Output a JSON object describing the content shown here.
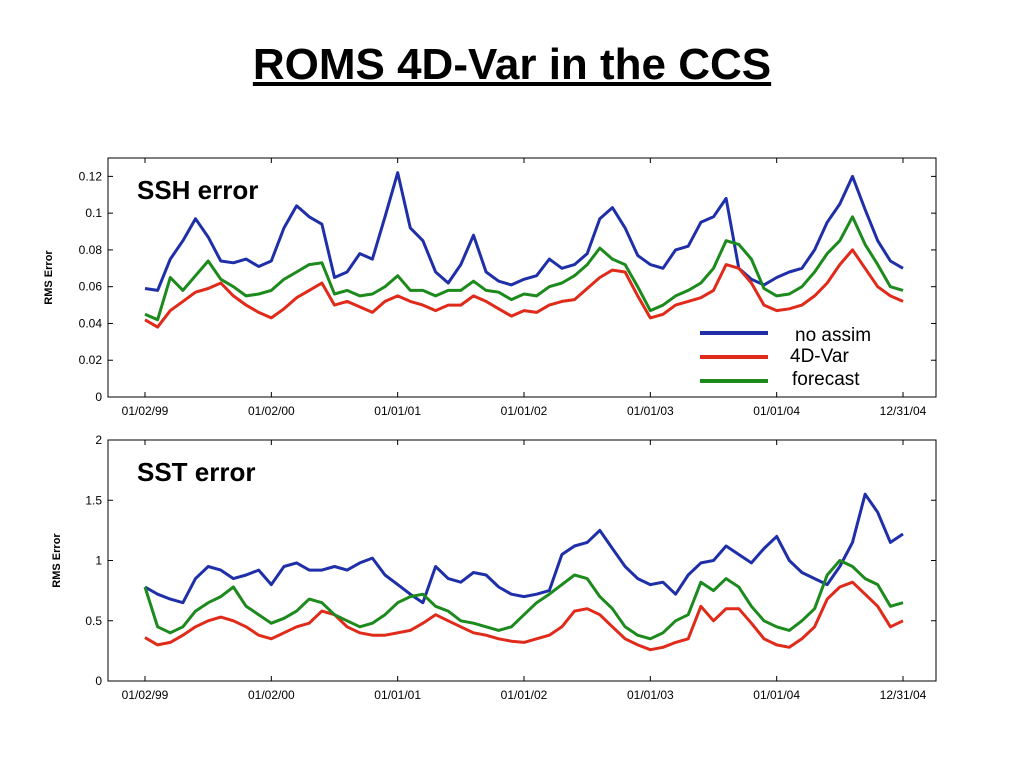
{
  "slide": {
    "title": "ROMS 4D-Var in the CCS"
  },
  "chart_data": [
    {
      "type": "line",
      "title": "SSH error",
      "xlabel": "",
      "ylabel": "RMS Error",
      "x_ticks": [
        "01/02/99",
        "01/02/00",
        "01/01/01",
        "01/01/02",
        "01/01/03",
        "01/01/04",
        "12/31/04"
      ],
      "y_ticks": [
        "0",
        "0.02",
        "0.04",
        "0.06",
        "0.08",
        "0.1",
        "0.12"
      ],
      "xlim": [
        0,
        6
      ],
      "ylim": [
        0,
        0.13
      ],
      "grid": false,
      "legend": {
        "position": "right",
        "entries": [
          "no assim",
          "4D-Var",
          "forecast"
        ]
      },
      "series": [
        {
          "name": "no assim",
          "color": "#1f2fa8",
          "x": [
            0,
            0.1,
            0.2,
            0.3,
            0.4,
            0.5,
            0.6,
            0.7,
            0.8,
            0.9,
            1,
            1.1,
            1.2,
            1.3,
            1.4,
            1.5,
            1.6,
            1.7,
            1.8,
            1.9,
            2,
            2.1,
            2.2,
            2.3,
            2.4,
            2.5,
            2.6,
            2.7,
            2.8,
            2.9,
            3,
            3.1,
            3.2,
            3.3,
            3.4,
            3.5,
            3.6,
            3.7,
            3.8,
            3.9,
            4,
            4.1,
            4.2,
            4.3,
            4.4,
            4.5,
            4.6,
            4.7,
            4.8,
            4.9,
            5,
            5.1,
            5.2,
            5.3,
            5.4,
            5.5,
            5.6,
            5.7,
            5.8,
            5.9,
            6
          ],
          "values": [
            0.059,
            0.058,
            0.075,
            0.085,
            0.097,
            0.087,
            0.074,
            0.073,
            0.075,
            0.071,
            0.074,
            0.092,
            0.104,
            0.098,
            0.094,
            0.065,
            0.068,
            0.078,
            0.075,
            0.098,
            0.122,
            0.092,
            0.085,
            0.068,
            0.062,
            0.072,
            0.088,
            0.068,
            0.063,
            0.061,
            0.064,
            0.066,
            0.075,
            0.07,
            0.072,
            0.078,
            0.097,
            0.103,
            0.092,
            0.077,
            0.072,
            0.07,
            0.08,
            0.082,
            0.095,
            0.098,
            0.108,
            0.07,
            0.064,
            0.061,
            0.065,
            0.068,
            0.07,
            0.08,
            0.095,
            0.105,
            0.12,
            0.102,
            0.085,
            0.074,
            0.07
          ]
        },
        {
          "name": "4D-Var",
          "color": "#e02a1a",
          "x": [
            0,
            0.1,
            0.2,
            0.3,
            0.4,
            0.5,
            0.6,
            0.7,
            0.8,
            0.9,
            1,
            1.1,
            1.2,
            1.3,
            1.4,
            1.5,
            1.6,
            1.7,
            1.8,
            1.9,
            2,
            2.1,
            2.2,
            2.3,
            2.4,
            2.5,
            2.6,
            2.7,
            2.8,
            2.9,
            3,
            3.1,
            3.2,
            3.3,
            3.4,
            3.5,
            3.6,
            3.7,
            3.8,
            3.9,
            4,
            4.1,
            4.2,
            4.3,
            4.4,
            4.5,
            4.6,
            4.7,
            4.8,
            4.9,
            5,
            5.1,
            5.2,
            5.3,
            5.4,
            5.5,
            5.6,
            5.7,
            5.8,
            5.9,
            6
          ],
          "values": [
            0.042,
            0.038,
            0.047,
            0.052,
            0.057,
            0.059,
            0.062,
            0.055,
            0.05,
            0.046,
            0.043,
            0.048,
            0.054,
            0.058,
            0.062,
            0.05,
            0.052,
            0.049,
            0.046,
            0.052,
            0.055,
            0.052,
            0.05,
            0.047,
            0.05,
            0.05,
            0.055,
            0.052,
            0.048,
            0.044,
            0.047,
            0.046,
            0.05,
            0.052,
            0.053,
            0.059,
            0.065,
            0.069,
            0.068,
            0.055,
            0.043,
            0.045,
            0.05,
            0.052,
            0.054,
            0.058,
            0.072,
            0.07,
            0.062,
            0.05,
            0.047,
            0.048,
            0.05,
            0.055,
            0.062,
            0.072,
            0.08,
            0.07,
            0.06,
            0.055,
            0.052
          ]
        },
        {
          "name": "forecast",
          "color": "#1c8a1c",
          "x": [
            0,
            0.1,
            0.2,
            0.3,
            0.4,
            0.5,
            0.6,
            0.7,
            0.8,
            0.9,
            1,
            1.1,
            1.2,
            1.3,
            1.4,
            1.5,
            1.6,
            1.7,
            1.8,
            1.9,
            2,
            2.1,
            2.2,
            2.3,
            2.4,
            2.5,
            2.6,
            2.7,
            2.8,
            2.9,
            3,
            3.1,
            3.2,
            3.3,
            3.4,
            3.5,
            3.6,
            3.7,
            3.8,
            3.9,
            4,
            4.1,
            4.2,
            4.3,
            4.4,
            4.5,
            4.6,
            4.7,
            4.8,
            4.9,
            5,
            5.1,
            5.2,
            5.3,
            5.4,
            5.5,
            5.6,
            5.7,
            5.8,
            5.9,
            6
          ],
          "values": [
            0.045,
            0.042,
            0.065,
            0.058,
            0.066,
            0.074,
            0.064,
            0.06,
            0.055,
            0.056,
            0.058,
            0.064,
            0.068,
            0.072,
            0.073,
            0.056,
            0.058,
            0.055,
            0.056,
            0.06,
            0.066,
            0.058,
            0.058,
            0.055,
            0.058,
            0.058,
            0.063,
            0.058,
            0.057,
            0.053,
            0.056,
            0.055,
            0.06,
            0.062,
            0.066,
            0.072,
            0.081,
            0.075,
            0.072,
            0.06,
            0.047,
            0.05,
            0.055,
            0.058,
            0.062,
            0.07,
            0.085,
            0.083,
            0.075,
            0.059,
            0.055,
            0.056,
            0.06,
            0.068,
            0.078,
            0.085,
            0.098,
            0.083,
            0.072,
            0.06,
            0.058
          ]
        }
      ]
    },
    {
      "type": "line",
      "title": "SST error",
      "xlabel": "",
      "ylabel": "RMS Error",
      "x_ticks": [
        "01/02/99",
        "01/02/00",
        "01/01/01",
        "01/01/02",
        "01/01/03",
        "01/01/04",
        "12/31/04"
      ],
      "y_ticks": [
        "0",
        "0.5",
        "1",
        "1.5",
        "2"
      ],
      "xlim": [
        0,
        6
      ],
      "ylim": [
        0,
        2
      ],
      "grid": false,
      "series": [
        {
          "name": "no assim",
          "color": "#1f2fa8",
          "x": [
            0,
            0.1,
            0.2,
            0.3,
            0.4,
            0.5,
            0.6,
            0.7,
            0.8,
            0.9,
            1,
            1.1,
            1.2,
            1.3,
            1.4,
            1.5,
            1.6,
            1.7,
            1.8,
            1.9,
            2,
            2.1,
            2.2,
            2.3,
            2.4,
            2.5,
            2.6,
            2.7,
            2.8,
            2.9,
            3,
            3.1,
            3.2,
            3.3,
            3.4,
            3.5,
            3.6,
            3.7,
            3.8,
            3.9,
            4,
            4.1,
            4.2,
            4.3,
            4.4,
            4.5,
            4.6,
            4.7,
            4.8,
            4.9,
            5,
            5.1,
            5.2,
            5.3,
            5.4,
            5.5,
            5.6,
            5.7,
            5.8,
            5.9,
            6
          ],
          "values": [
            0.78,
            0.72,
            0.68,
            0.65,
            0.85,
            0.95,
            0.92,
            0.85,
            0.88,
            0.92,
            0.8,
            0.95,
            0.98,
            0.92,
            0.92,
            0.95,
            0.92,
            0.98,
            1.02,
            0.88,
            0.8,
            0.72,
            0.65,
            0.95,
            0.85,
            0.82,
            0.9,
            0.88,
            0.78,
            0.72,
            0.7,
            0.72,
            0.75,
            1.05,
            1.12,
            1.15,
            1.25,
            1.1,
            0.95,
            0.85,
            0.8,
            0.82,
            0.72,
            0.88,
            0.98,
            1.0,
            1.12,
            1.05,
            0.98,
            1.1,
            1.2,
            1.0,
            0.9,
            0.85,
            0.8,
            0.95,
            1.15,
            1.55,
            1.4,
            1.15,
            1.22
          ]
        },
        {
          "name": "4D-Var",
          "color": "#e02a1a",
          "x": [
            0,
            0.1,
            0.2,
            0.3,
            0.4,
            0.5,
            0.6,
            0.7,
            0.8,
            0.9,
            1,
            1.1,
            1.2,
            1.3,
            1.4,
            1.5,
            1.6,
            1.7,
            1.8,
            1.9,
            2,
            2.1,
            2.2,
            2.3,
            2.4,
            2.5,
            2.6,
            2.7,
            2.8,
            2.9,
            3,
            3.1,
            3.2,
            3.3,
            3.4,
            3.5,
            3.6,
            3.7,
            3.8,
            3.9,
            4,
            4.1,
            4.2,
            4.3,
            4.4,
            4.5,
            4.6,
            4.7,
            4.8,
            4.9,
            5,
            5.1,
            5.2,
            5.3,
            5.4,
            5.5,
            5.6,
            5.7,
            5.8,
            5.9,
            6
          ],
          "values": [
            0.36,
            0.3,
            0.32,
            0.38,
            0.45,
            0.5,
            0.53,
            0.5,
            0.45,
            0.38,
            0.35,
            0.4,
            0.45,
            0.48,
            0.58,
            0.55,
            0.45,
            0.4,
            0.38,
            0.38,
            0.4,
            0.42,
            0.48,
            0.55,
            0.5,
            0.45,
            0.4,
            0.38,
            0.35,
            0.33,
            0.32,
            0.35,
            0.38,
            0.45,
            0.58,
            0.6,
            0.55,
            0.45,
            0.35,
            0.3,
            0.26,
            0.28,
            0.32,
            0.35,
            0.62,
            0.5,
            0.6,
            0.6,
            0.48,
            0.35,
            0.3,
            0.28,
            0.35,
            0.45,
            0.68,
            0.78,
            0.82,
            0.72,
            0.62,
            0.45,
            0.5
          ]
        },
        {
          "name": "forecast",
          "color": "#1c8a1c",
          "x": [
            0,
            0.1,
            0.2,
            0.3,
            0.4,
            0.5,
            0.6,
            0.7,
            0.8,
            0.9,
            1,
            1.1,
            1.2,
            1.3,
            1.4,
            1.5,
            1.6,
            1.7,
            1.8,
            1.9,
            2,
            2.1,
            2.2,
            2.3,
            2.4,
            2.5,
            2.6,
            2.7,
            2.8,
            2.9,
            3,
            3.1,
            3.2,
            3.3,
            3.4,
            3.5,
            3.6,
            3.7,
            3.8,
            3.9,
            4,
            4.1,
            4.2,
            4.3,
            4.4,
            4.5,
            4.6,
            4.7,
            4.8,
            4.9,
            5,
            5.1,
            5.2,
            5.3,
            5.4,
            5.5,
            5.6,
            5.7,
            5.8,
            5.9,
            6
          ],
          "values": [
            0.78,
            0.45,
            0.4,
            0.45,
            0.58,
            0.65,
            0.7,
            0.78,
            0.62,
            0.55,
            0.48,
            0.52,
            0.58,
            0.68,
            0.65,
            0.55,
            0.5,
            0.45,
            0.48,
            0.55,
            0.65,
            0.7,
            0.72,
            0.62,
            0.58,
            0.5,
            0.48,
            0.45,
            0.42,
            0.45,
            0.55,
            0.65,
            0.72,
            0.8,
            0.88,
            0.85,
            0.7,
            0.6,
            0.45,
            0.38,
            0.35,
            0.4,
            0.5,
            0.55,
            0.82,
            0.75,
            0.85,
            0.78,
            0.62,
            0.5,
            0.45,
            0.42,
            0.5,
            0.6,
            0.88,
            1.0,
            0.95,
            0.85,
            0.8,
            0.62,
            0.65
          ]
        }
      ]
    }
  ]
}
